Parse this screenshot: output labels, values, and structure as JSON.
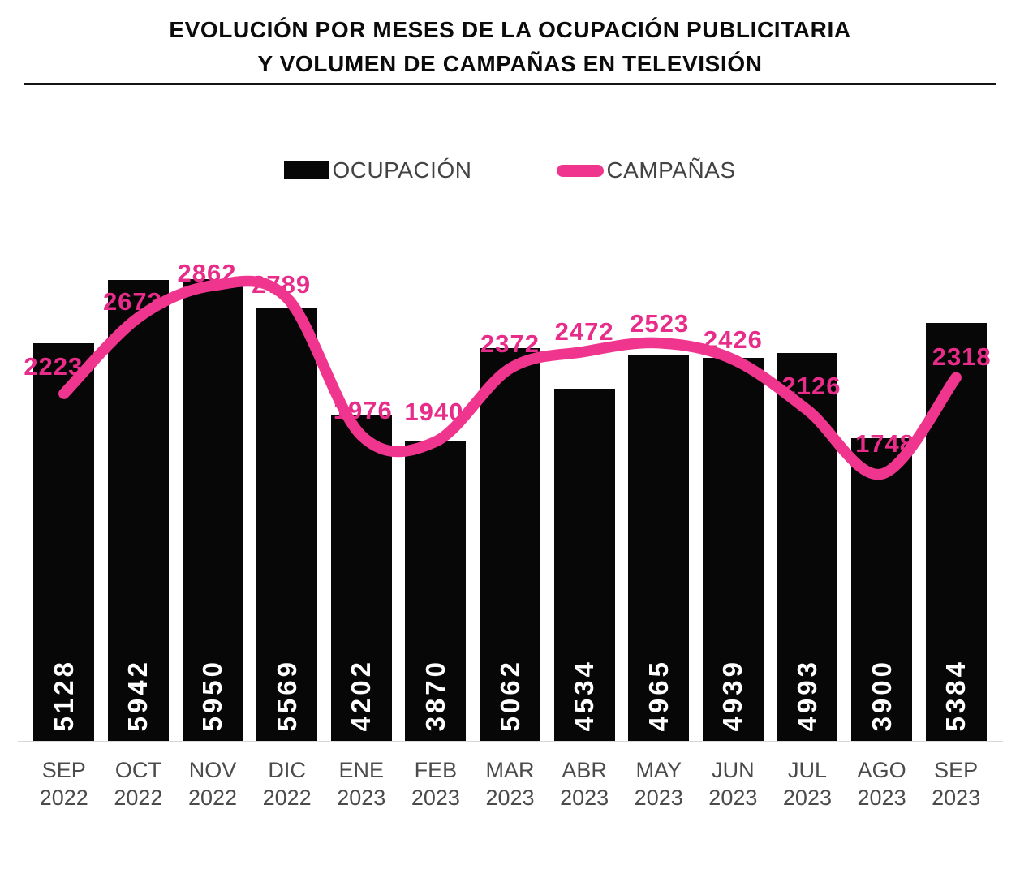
{
  "title": {
    "line1": "EVOLUCIÓN POR MESES DE LA OCUPACIÓN PUBLICITARIA",
    "line2": "Y VOLUMEN DE CAMPAÑAS EN TELEVISIÓN"
  },
  "legend": {
    "ocupacion_label": "OCUPACIÓN",
    "campanas_label": "CAMPAÑAS"
  },
  "colors": {
    "bar": "#070707",
    "line": "#F0358F",
    "pink_text": "#E72C8A",
    "axis_text": "#4b4b4b",
    "bar_value_text": "#ffffff",
    "baseline": "#d8d8d8",
    "title_text": "#0b0b0b"
  },
  "chart_data": {
    "type": "bar",
    "subtype": "bar-with-smoothed-line-overlay",
    "title": "EVOLUCIÓN POR MESES DE LA OCUPACIÓN PUBLICITARIA Y VOLUMEN DE CAMPAÑAS EN TELEVISIÓN",
    "xlabel": "",
    "ylabel": "",
    "grid": false,
    "legend_position": "top",
    "ylim_bars": [
      0,
      6200
    ],
    "ylim_line": [
      0,
      3200
    ],
    "categories": [
      {
        "month": "SEP",
        "year": "2022"
      },
      {
        "month": "OCT",
        "year": "2022"
      },
      {
        "month": "NOV",
        "year": "2022"
      },
      {
        "month": "DIC",
        "year": "2022"
      },
      {
        "month": "ENE",
        "year": "2023"
      },
      {
        "month": "FEB",
        "year": "2023"
      },
      {
        "month": "MAR",
        "year": "2023"
      },
      {
        "month": "ABR",
        "year": "2023"
      },
      {
        "month": "MAY",
        "year": "2023"
      },
      {
        "month": "JUN",
        "year": "2023"
      },
      {
        "month": "JUL",
        "year": "2023"
      },
      {
        "month": "AGO",
        "year": "2023"
      },
      {
        "month": "SEP",
        "year": "2023"
      }
    ],
    "series": [
      {
        "name": "OCUPACIÓN",
        "type": "bar",
        "color": "#070707",
        "values": [
          5128,
          5942,
          5950,
          5569,
          4202,
          3870,
          5062,
          4534,
          4965,
          4939,
          4993,
          3900,
          5384
        ]
      },
      {
        "name": "CAMPAÑAS",
        "type": "line",
        "color": "#F0358F",
        "values": [
          2223,
          2673,
          2862,
          2789,
          1976,
          1940,
          2372,
          2472,
          2523,
          2426,
          2126,
          1748,
          2318
        ]
      }
    ]
  }
}
